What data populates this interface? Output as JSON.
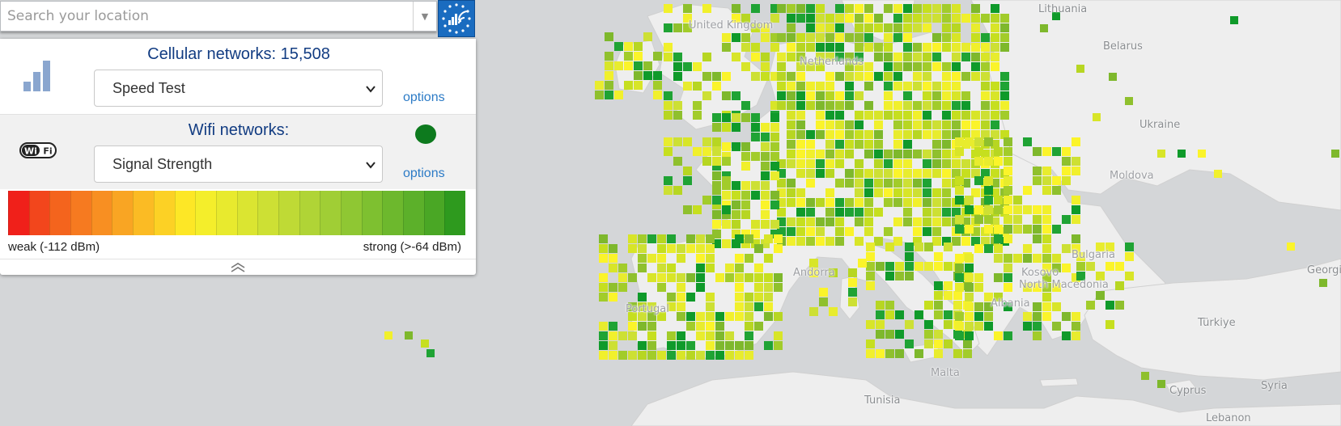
{
  "search": {
    "placeholder": "Search your location"
  },
  "cellular": {
    "title": "Cellular networks: 15,508",
    "selected": "Speed Test",
    "options_label": "options"
  },
  "wifi": {
    "title": "Wifi networks:",
    "selected": "Signal Strength",
    "options_label": "options",
    "status_color": "#0d7a1e"
  },
  "legend": {
    "min_label": "weak (-112 dBm)",
    "max_label": "strong (>-64 dBm)",
    "colors": [
      "#f0201a",
      "#f2461c",
      "#f4641d",
      "#f67a20",
      "#f88f22",
      "#f9a523",
      "#fbbb24",
      "#fcd125",
      "#fde726",
      "#f4ee2b",
      "#e8ea2e",
      "#dbe531",
      "#cde034",
      "#bfda35",
      "#b0d436",
      "#a0ce35",
      "#8fc733",
      "#7ec030",
      "#6db82d",
      "#5cb02a",
      "#4aa725",
      "#2e9a1e"
    ]
  },
  "map": {
    "labels": [
      "Lithuania",
      "Belarus",
      "Ukraine",
      "United Kingdom",
      "Netherlands",
      "Moldova",
      "Andorra",
      "Portugal",
      "Kosovo",
      "Bulgaria",
      "North Macedonia",
      "Albania",
      "Türkiye",
      "Georgia",
      "Tunisia",
      "Malta",
      "Cyprus",
      "Lebanon",
      "Syria"
    ]
  }
}
